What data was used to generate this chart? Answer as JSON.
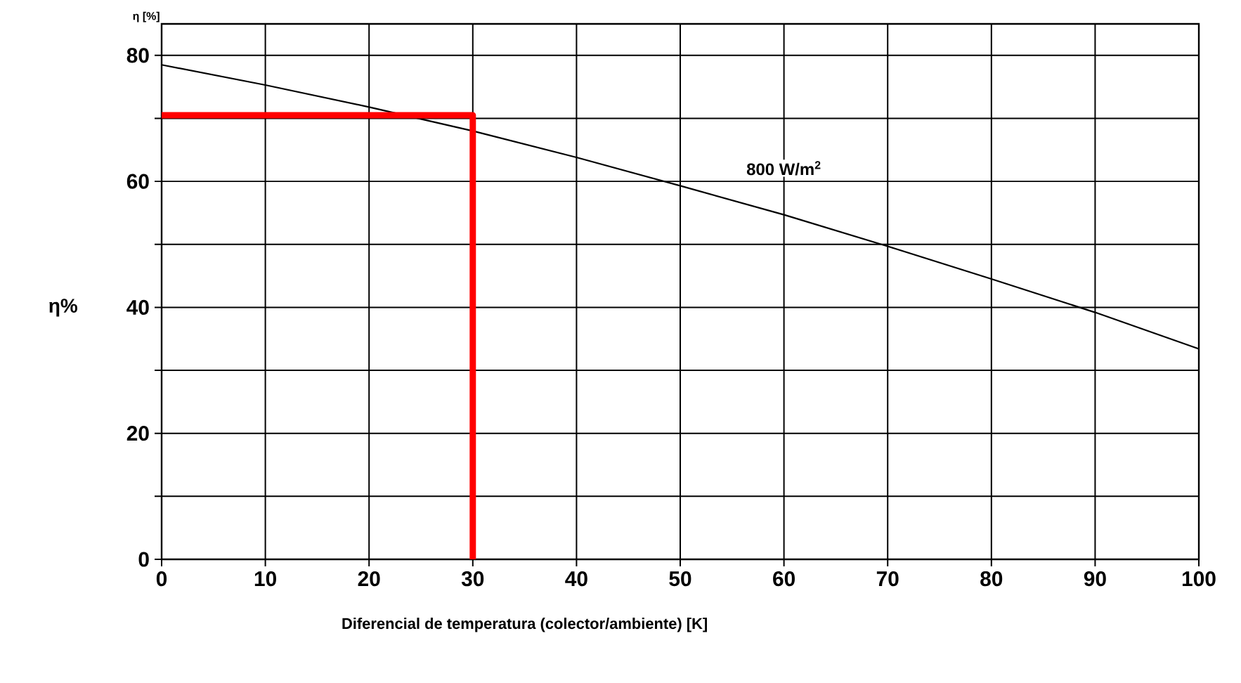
{
  "chart_data": {
    "type": "line",
    "xlabel": "Diferencial de temperatura (colector/ambiente) [K]",
    "ylabel": "η%",
    "annotations": [
      "η [%]",
      "800 W/m$^{2}$"
    ],
    "series": [
      {
        "color": "#000000",
        "x": [
          0,
          10,
          20,
          30,
          40,
          50,
          60,
          70,
          80,
          90,
          100
        ],
        "values": [
          78.5,
          75.3,
          71.8,
          68,
          63.8,
          59.3,
          54.7,
          49.7,
          44.5,
          39.2,
          33.4
        ]
      },
      {
        "color": "#ff0000",
        "x": [
          0,
          30,
          30
        ],
        "values": [
          70.5,
          70.5,
          0
        ]
      }
    ],
    "xlim": [
      0,
      100
    ],
    "xticks": [
      0,
      10,
      20,
      30,
      40,
      50,
      60,
      70,
      80,
      90,
      100
    ],
    "ylim": [
      0,
      85
    ],
    "yticks": [
      0,
      {
        "value": 10,
        "label": null
      },
      20,
      {
        "value": 30,
        "label": null
      },
      40,
      {
        "value": 50,
        "label": null
      },
      60,
      {
        "value": 70,
        "label": null
      },
      80
    ],
    "grid": true
  }
}
